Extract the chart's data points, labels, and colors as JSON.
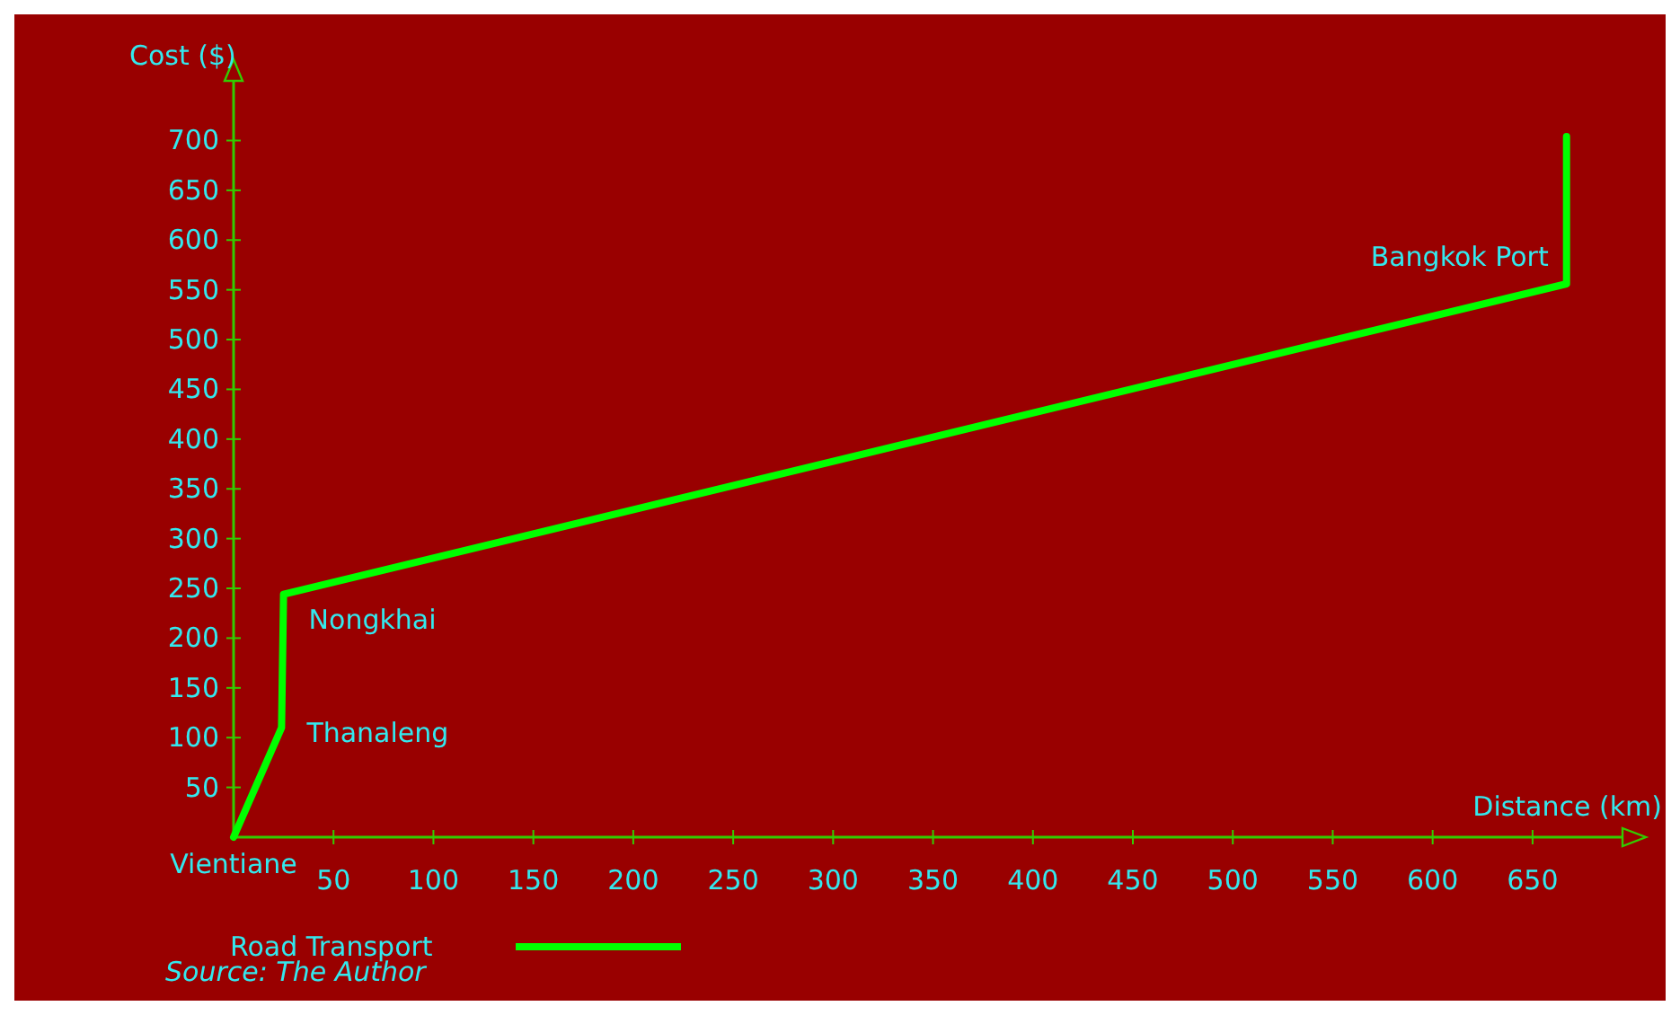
{
  "chart_data": {
    "type": "line",
    "ylabel": "Cost ($)",
    "xlabel": "Distance (km)",
    "x": [
      0,
      24,
      25,
      667,
      667
    ],
    "series": [
      {
        "name": "Road Transport",
        "color": "#00ff00",
        "values": [
          0,
          110,
          244,
          556,
          704
        ]
      }
    ],
    "xlim": [
      0,
      695
    ],
    "xticks": [
      50,
      100,
      150,
      200,
      250,
      300,
      350,
      400,
      450,
      500,
      550,
      600,
      650
    ],
    "ylim": [
      0,
      760
    ],
    "yticks": [
      50,
      100,
      150,
      200,
      250,
      300,
      350,
      400,
      450,
      500,
      550,
      600,
      650,
      700
    ],
    "grid": false,
    "legend": "bottom left",
    "marker": "none",
    "line_style": "solid",
    "annotations": [
      {
        "text": "Vientiane",
        "x": 0,
        "y": 0
      },
      {
        "text": "Thanaleng",
        "x": 24,
        "y": 110
      },
      {
        "text": "Nongkhai",
        "x": 25,
        "y": 244
      },
      {
        "text": "Bangkok Port",
        "x": 667,
        "y": 556
      },
      "Source: The Author"
    ]
  }
}
